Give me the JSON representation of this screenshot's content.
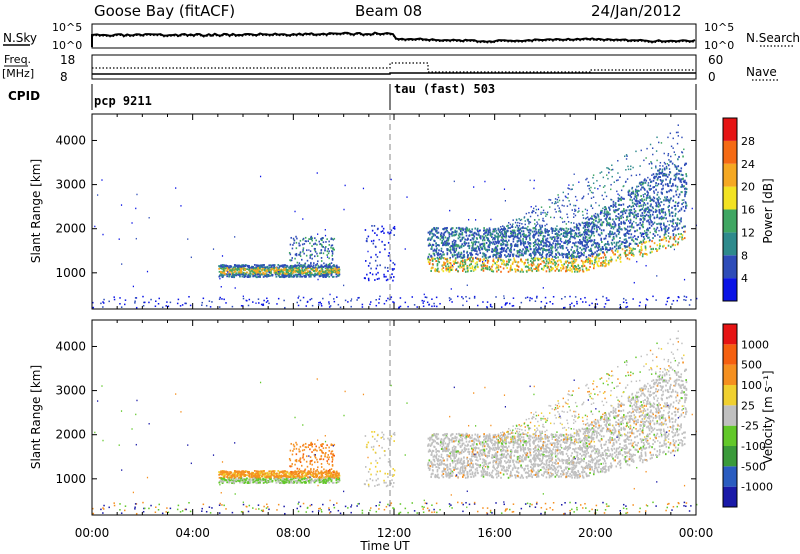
{
  "header": {
    "station": "Goose Bay (fitACF)",
    "beam": "Beam 08",
    "date": "24/Jan/2012"
  },
  "top_panels": {
    "nsky_label": "N.Sky",
    "nsky_tick_hi": "10^5",
    "nsky_tick_lo": "10^0",
    "nsearch_label": "N.Search",
    "nsearch_tick_hi": "10^5",
    "nsearch_tick_lo": "10^0",
    "freq_label": "Freq.",
    "freq_unit": "[MHz]",
    "freq_tick_hi": "18",
    "freq_tick_lo": "8",
    "nave_label": "Nave",
    "nave_tick_hi": "60",
    "nave_tick_lo": "0",
    "cpid_label": "CPID",
    "cpid_1": "pcp 9211",
    "cpid_2": "tau (fast) 503"
  },
  "x_axis": {
    "label": "Time UT",
    "ticks": [
      "00:00",
      "04:00",
      "08:00",
      "12:00",
      "16:00",
      "20:00",
      "00:00"
    ]
  },
  "chart_data": [
    {
      "type": "heatmap",
      "name": "power",
      "xlabel": "Time UT",
      "ylabel": "Slant Range [km]",
      "x_ticks": [
        "00:00",
        "04:00",
        "08:00",
        "12:00",
        "16:00",
        "20:00",
        "00:00"
      ],
      "y_ticks": [
        1000,
        2000,
        3000,
        4000
      ],
      "xlim_hours": [
        0,
        24
      ],
      "ylim_km": [
        180,
        4600
      ],
      "colorbar": {
        "label": "Power [dB]",
        "ticks": [
          "4",
          "8",
          "12",
          "16",
          "20",
          "24",
          "28"
        ],
        "colors": [
          "#0a14e6",
          "#2e4cb8",
          "#2e8a8c",
          "#3fa662",
          "#f2e222",
          "#f5a822",
          "#f56a14",
          "#e61414"
        ]
      }
    },
    {
      "type": "heatmap",
      "name": "velocity",
      "xlabel": "Time UT",
      "ylabel": "Slant Range [km]",
      "x_ticks": [
        "00:00",
        "04:00",
        "08:00",
        "12:00",
        "16:00",
        "20:00",
        "00:00"
      ],
      "y_ticks": [
        1000,
        2000,
        3000,
        4000
      ],
      "xlim_hours": [
        0,
        24
      ],
      "ylim_km": [
        180,
        4600
      ],
      "colorbar": {
        "label": "Velocity [m s⁻¹]",
        "ticks": [
          "1000",
          "500",
          "100",
          "25",
          "-25",
          "-100",
          "-500",
          "-1000"
        ],
        "colors": [
          "#1a1aa8",
          "#2a5cc0",
          "#3a9a3a",
          "#62c82a",
          "#c0c0c0",
          "#f0d030",
          "#f59020",
          "#f56010",
          "#e61414"
        ]
      }
    }
  ]
}
